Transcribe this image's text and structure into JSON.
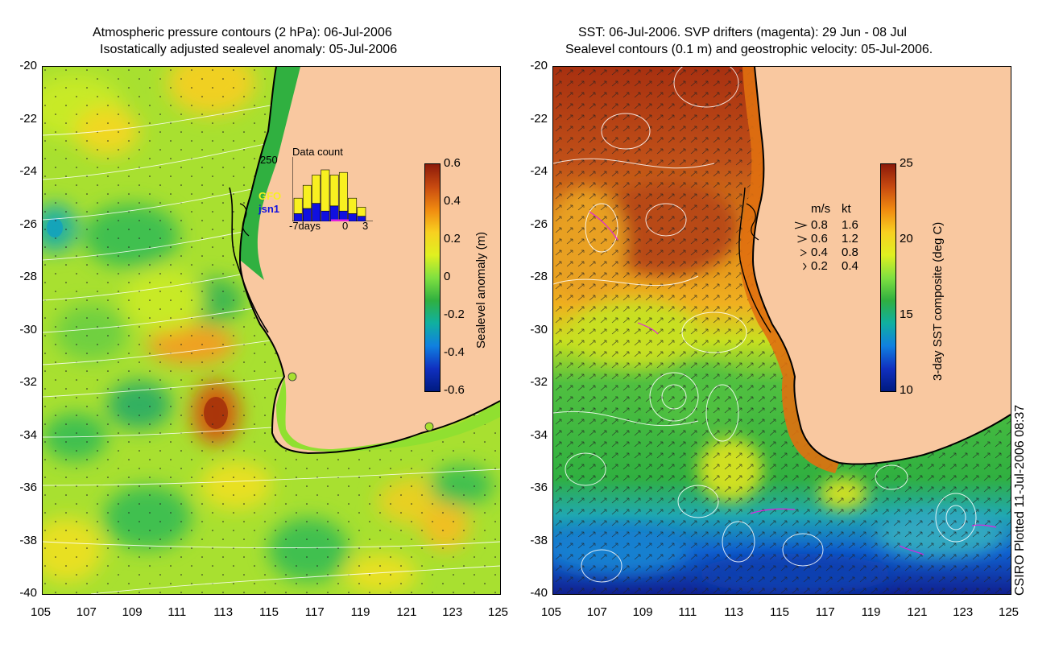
{
  "left_panel": {
    "title_line1": "Atmospheric pressure contours (2 hPa): 06-Jul-2006",
    "title_line2": "Isostatically adjusted sealevel anomaly: 05-Jul-2006",
    "y_ticks": [
      "-20",
      "-22",
      "-24",
      "-26",
      "-28",
      "-30",
      "-32",
      "-34",
      "-36",
      "-38",
      "-40"
    ],
    "x_ticks": [
      "105",
      "107",
      "109",
      "111",
      "113",
      "115",
      "117",
      "119",
      "121",
      "123",
      "125"
    ],
    "colorbar": {
      "label": "Sealevel anomaly (m)",
      "ticks": [
        "0.6",
        "0.4",
        "0.2",
        "0",
        "-0.2",
        "-0.4",
        "-0.6"
      ],
      "colors": [
        "#8c1a0a",
        "#c84a10",
        "#f08a10",
        "#f8d020",
        "#e0f020",
        "#80e040",
        "#30b040",
        "#10b0a0",
        "#1080e0",
        "#1030c0",
        "#001a80"
      ]
    },
    "data_count": {
      "title": "Data count",
      "ymax_label": "250",
      "series1_label": "GFO",
      "series2_label": "jsn1",
      "series1_color": "#f8f020",
      "series2_color": "#1010e0",
      "x_label_left": "-7days",
      "x_label_mid": "0",
      "x_label_right": "3",
      "gfo_values": [
        60,
        90,
        110,
        160,
        120,
        150,
        60,
        35
      ],
      "jsn1_values": [
        30,
        50,
        70,
        40,
        60,
        40,
        30,
        20
      ]
    }
  },
  "right_panel": {
    "title_line1": "SST: 06-Jul-2006. SVP drifters (magenta): 29 Jun - 08 Jul",
    "title_line2": "Sealevel contours (0.1 m) and geostrophic velocity: 05-Jul-2006.",
    "y_ticks": [
      "-20",
      "-22",
      "-24",
      "-26",
      "-28",
      "-30",
      "-32",
      "-34",
      "-36",
      "-38",
      "-40"
    ],
    "x_ticks": [
      "105",
      "107",
      "109",
      "111",
      "113",
      "115",
      "117",
      "119",
      "121",
      "123",
      "125"
    ],
    "colorbar": {
      "label": "3-day SST composite (deg C)",
      "ticks": [
        "25",
        "20",
        "15",
        "10"
      ],
      "colors": [
        "#8c1a0a",
        "#c84a10",
        "#f08a10",
        "#f8d020",
        "#e0f020",
        "#80e040",
        "#30b040",
        "#10b0a0",
        "#1080e0",
        "#1030c0",
        "#001a80"
      ]
    },
    "velocity_legend": {
      "header_ms": "m/s",
      "header_kt": "kt",
      "rows": [
        {
          "ms": "0.8",
          "kt": "1.6"
        },
        {
          "ms": "0.6",
          "kt": "1.2"
        },
        {
          "ms": "0.4",
          "kt": "0.8"
        },
        {
          "ms": "0.2",
          "kt": "0.4"
        }
      ]
    }
  },
  "footer_vertical": "CSIRO Plotted 11-Jul-2006 08:37",
  "colors": {
    "land": "#f9c8a0",
    "coast": "#000000",
    "drifter": "#e020e0"
  }
}
